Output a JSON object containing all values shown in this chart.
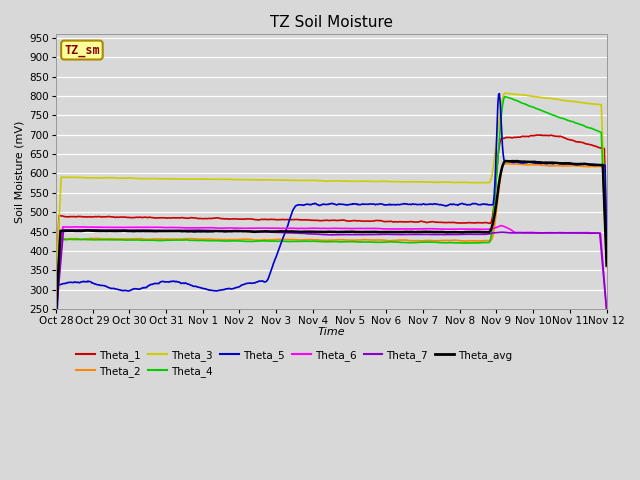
{
  "title": "TZ Soil Moisture",
  "xlabel": "Time",
  "ylabel": "Soil Moisture (mV)",
  "ylim": [
    250,
    960
  ],
  "yticks": [
    250,
    300,
    350,
    400,
    450,
    500,
    550,
    600,
    650,
    700,
    750,
    800,
    850,
    900,
    950
  ],
  "date_labels": [
    "Oct 28",
    "Oct 29",
    "Oct 30",
    "Oct 31",
    "Nov 1",
    "Nov 2",
    "Nov 3",
    "Nov 4",
    "Nov 5",
    "Nov 6",
    "Nov 7",
    "Nov 8",
    "Nov 9",
    "Nov 10",
    "Nov 11",
    "Nov 12"
  ],
  "bg_color": "#d8d8d8",
  "grid_color": "#ffffff",
  "series": {
    "Theta_1": {
      "color": "#cc0000",
      "lw": 1.2
    },
    "Theta_2": {
      "color": "#ff8800",
      "lw": 1.2
    },
    "Theta_3": {
      "color": "#cccc00",
      "lw": 1.2
    },
    "Theta_4": {
      "color": "#00cc00",
      "lw": 1.2
    },
    "Theta_5": {
      "color": "#0000cc",
      "lw": 1.2
    },
    "Theta_6": {
      "color": "#ff00ff",
      "lw": 1.2
    },
    "Theta_7": {
      "color": "#8800cc",
      "lw": 1.2
    },
    "Theta_avg": {
      "color": "#000000",
      "lw": 1.8
    }
  },
  "legend_label": "TZ_sm",
  "legend_bg": "#ffff99",
  "legend_border": "#aa8800"
}
